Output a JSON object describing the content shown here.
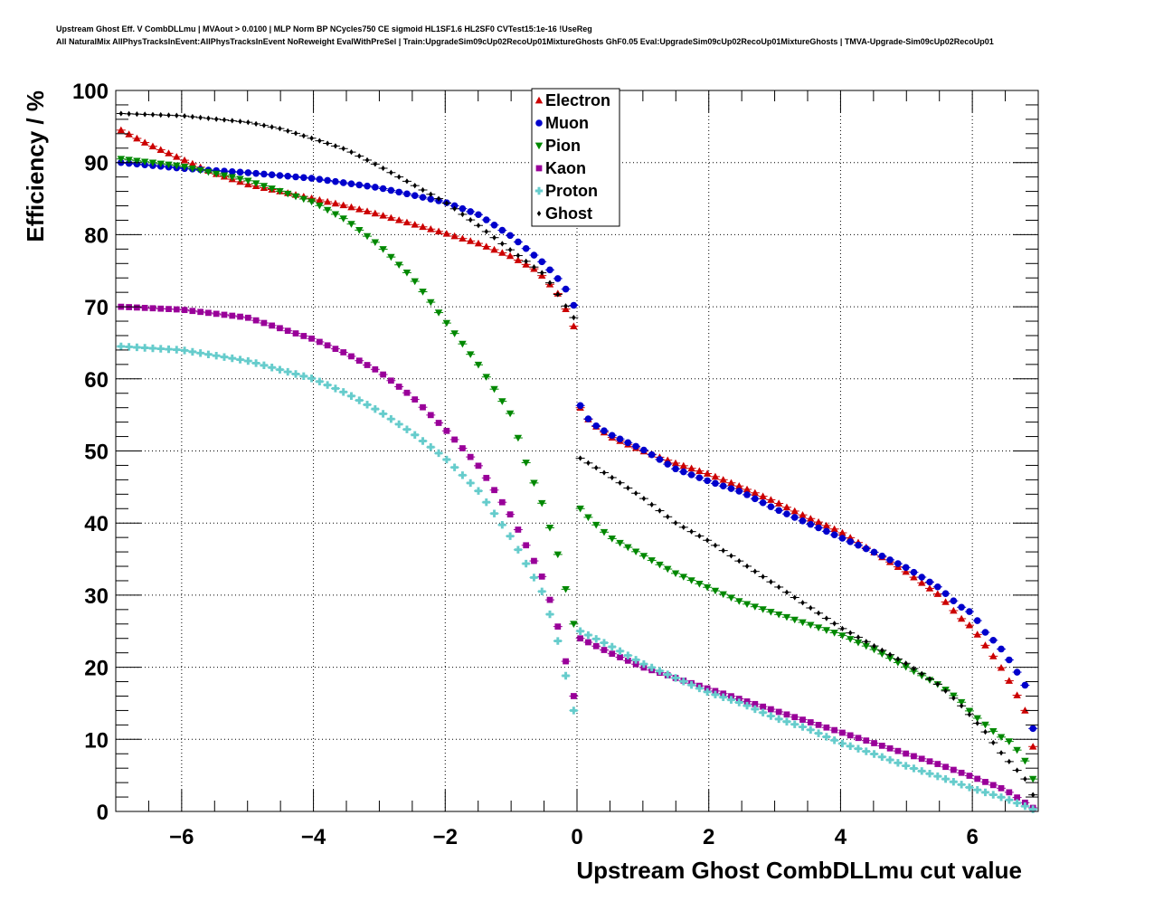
{
  "header": {
    "line1": "Upstream Ghost Eff. V CombDLLmu | MVAout > 0.0100 | MLP Norm BP NCycles750 CE sigmoid HL1SF1.6 HL2SF0 CVTest15:1e-16 !UseReg",
    "line2": "All NaturalMix AllPhysTracksInEvent:AllPhysTracksInEvent NoReweight EvalWithPreSel | Train:UpgradeSim09cUp02RecoUp01MixtureGhosts GhF0.05 Eval:UpgradeSim09cUp02RecoUp01MixtureGhosts | TMVA-Upgrade-Sim09cUp02RecoUp01"
  },
  "chart_data": {
    "type": "scatter",
    "xlabel": "Upstream Ghost CombDLLmu cut value",
    "ylabel": "Efficiency / %",
    "xlim": [
      -7,
      7
    ],
    "ylim": [
      0,
      100
    ],
    "x_ticks": [
      -6,
      -4,
      -2,
      0,
      2,
      4,
      6
    ],
    "x_tick_labels": [
      "−6",
      "−4",
      "−2",
      "0",
      "2",
      "4",
      "6"
    ],
    "y_ticks": [
      0,
      10,
      20,
      30,
      40,
      50,
      60,
      70,
      80,
      90,
      100
    ],
    "y_tick_labels": [
      "0",
      "10",
      "20",
      "30",
      "40",
      "50",
      "60",
      "70",
      "80",
      "90",
      "100"
    ],
    "grid": true,
    "legend_position": "top-center",
    "series": [
      {
        "name": "Electron",
        "color": "#cc0000",
        "marker": "triangle-up",
        "knots": [
          [
            -6.92,
            94.5
          ],
          [
            -6.5,
            92.5
          ],
          [
            -6.0,
            90.5
          ],
          [
            -5.5,
            88.5
          ],
          [
            -5.0,
            87.0
          ],
          [
            -4.5,
            86.0
          ],
          [
            -4.0,
            85.0
          ],
          [
            -3.5,
            84.0
          ],
          [
            -3.0,
            82.8
          ],
          [
            -2.5,
            81.5
          ],
          [
            -2.0,
            80.2
          ],
          [
            -1.5,
            78.8
          ],
          [
            -1.0,
            77.0
          ],
          [
            -0.6,
            75.0
          ],
          [
            -0.3,
            72.0
          ],
          [
            -0.16,
            69.5
          ],
          [
            -0.05,
            67.3
          ]
        ],
        "knots2": [
          [
            0.05,
            56.0
          ],
          [
            0.2,
            54.0
          ],
          [
            0.5,
            52.0
          ],
          [
            1.0,
            50.0
          ],
          [
            1.5,
            48.3
          ],
          [
            2.0,
            46.8
          ],
          [
            2.5,
            45.0
          ],
          [
            3.0,
            43.0
          ],
          [
            3.5,
            40.8
          ],
          [
            4.0,
            38.8
          ],
          [
            4.5,
            36.0
          ],
          [
            5.0,
            33.2
          ],
          [
            5.5,
            30.0
          ],
          [
            5.8,
            27.0
          ],
          [
            6.0,
            25.5
          ],
          [
            6.2,
            23.0
          ],
          [
            6.4,
            20.5
          ],
          [
            6.6,
            17.5
          ],
          [
            6.8,
            14.0
          ],
          [
            6.92,
            9.0
          ]
        ]
      },
      {
        "name": "Muon",
        "color": "#0000cc",
        "marker": "circle",
        "knots": [
          [
            -6.92,
            90.0
          ],
          [
            -6.0,
            89.2
          ],
          [
            -5.0,
            88.6
          ],
          [
            -4.0,
            87.8
          ],
          [
            -3.0,
            86.5
          ],
          [
            -2.0,
            84.5
          ],
          [
            -1.5,
            82.8
          ],
          [
            -1.0,
            79.8
          ],
          [
            -0.5,
            76.0
          ],
          [
            -0.2,
            73.0
          ],
          [
            -0.05,
            70.2
          ]
        ],
        "knots2": [
          [
            0.05,
            56.3
          ],
          [
            0.2,
            54.0
          ],
          [
            0.5,
            52.3
          ],
          [
            1.0,
            50.2
          ],
          [
            1.5,
            47.5
          ],
          [
            2.0,
            45.8
          ],
          [
            2.5,
            44.3
          ],
          [
            3.0,
            42.0
          ],
          [
            3.5,
            40.0
          ],
          [
            4.0,
            38.0
          ],
          [
            4.5,
            36.0
          ],
          [
            5.0,
            33.8
          ],
          [
            5.5,
            31.0
          ],
          [
            5.8,
            28.5
          ],
          [
            6.0,
            27.5
          ],
          [
            6.2,
            24.8
          ],
          [
            6.4,
            23.0
          ],
          [
            6.6,
            20.5
          ],
          [
            6.8,
            17.5
          ],
          [
            6.92,
            11.5
          ]
        ]
      },
      {
        "name": "Pion",
        "color": "#008800",
        "marker": "triangle-down",
        "knots": [
          [
            -6.92,
            90.5
          ],
          [
            -6.0,
            89.5
          ],
          [
            -5.0,
            87.5
          ],
          [
            -4.0,
            84.5
          ],
          [
            -3.5,
            82.0
          ],
          [
            -3.0,
            78.5
          ],
          [
            -2.5,
            74.0
          ],
          [
            -2.0,
            68.0
          ],
          [
            -1.5,
            62.0
          ],
          [
            -1.0,
            55.0
          ],
          [
            -0.8,
            49.0
          ],
          [
            -0.5,
            42.0
          ],
          [
            -0.3,
            36.0
          ],
          [
            -0.15,
            30.0
          ],
          [
            -0.05,
            26.0
          ]
        ],
        "knots2": [
          [
            0.05,
            42.0
          ],
          [
            0.2,
            40.5
          ],
          [
            0.5,
            38.0
          ],
          [
            1.0,
            35.5
          ],
          [
            1.5,
            33.0
          ],
          [
            2.0,
            31.0
          ],
          [
            2.5,
            29.0
          ],
          [
            3.0,
            27.5
          ],
          [
            3.5,
            26.0
          ],
          [
            4.0,
            24.5
          ],
          [
            4.5,
            22.5
          ],
          [
            5.0,
            20.0
          ],
          [
            5.5,
            17.5
          ],
          [
            5.8,
            15.5
          ],
          [
            6.0,
            13.5
          ],
          [
            6.2,
            12.0
          ],
          [
            6.4,
            10.5
          ],
          [
            6.6,
            9.5
          ],
          [
            6.8,
            7.0
          ],
          [
            6.92,
            4.5
          ]
        ]
      },
      {
        "name": "Kaon",
        "color": "#990099",
        "marker": "square",
        "knots": [
          [
            -6.92,
            70.0
          ],
          [
            -6.0,
            69.6
          ],
          [
            -5.0,
            68.5
          ],
          [
            -4.5,
            67.0
          ],
          [
            -4.0,
            65.5
          ],
          [
            -3.5,
            63.5
          ],
          [
            -3.0,
            61.0
          ],
          [
            -2.5,
            57.5
          ],
          [
            -2.0,
            53.0
          ],
          [
            -1.5,
            48.0
          ],
          [
            -1.0,
            41.0
          ],
          [
            -0.5,
            32.0
          ],
          [
            -0.3,
            26.0
          ],
          [
            -0.15,
            20.0
          ],
          [
            -0.05,
            16.0
          ]
        ],
        "knots2": [
          [
            0.05,
            24.0
          ],
          [
            0.5,
            22.0
          ],
          [
            1.0,
            20.0
          ],
          [
            1.5,
            18.5
          ],
          [
            2.0,
            17.0
          ],
          [
            2.5,
            15.5
          ],
          [
            3.0,
            14.0
          ],
          [
            3.5,
            12.5
          ],
          [
            4.0,
            11.0
          ],
          [
            4.5,
            9.5
          ],
          [
            5.0,
            8.0
          ],
          [
            5.5,
            6.5
          ],
          [
            6.0,
            4.8
          ],
          [
            6.5,
            3.0
          ],
          [
            6.92,
            0.5
          ]
        ]
      },
      {
        "name": "Proton",
        "color": "#66cccc",
        "marker": "cross",
        "knots": [
          [
            -6.92,
            64.5
          ],
          [
            -6.0,
            64.0
          ],
          [
            -5.0,
            62.5
          ],
          [
            -4.0,
            60.0
          ],
          [
            -3.5,
            58.0
          ],
          [
            -3.0,
            55.5
          ],
          [
            -2.5,
            52.5
          ],
          [
            -2.0,
            49.0
          ],
          [
            -1.5,
            44.5
          ],
          [
            -1.0,
            38.0
          ],
          [
            -0.5,
            30.0
          ],
          [
            -0.3,
            24.0
          ],
          [
            -0.15,
            18.0
          ],
          [
            -0.05,
            14.0
          ]
        ],
        "knots2": [
          [
            0.05,
            25.0
          ],
          [
            0.5,
            23.0
          ],
          [
            1.0,
            20.5
          ],
          [
            1.5,
            18.5
          ],
          [
            2.0,
            16.5
          ],
          [
            2.5,
            15.0
          ],
          [
            3.0,
            13.0
          ],
          [
            3.5,
            11.5
          ],
          [
            4.0,
            9.5
          ],
          [
            4.5,
            8.0
          ],
          [
            5.0,
            6.3
          ],
          [
            5.5,
            4.8
          ],
          [
            6.0,
            3.2
          ],
          [
            6.5,
            1.8
          ],
          [
            6.92,
            0.3
          ]
        ]
      },
      {
        "name": "Ghost",
        "color": "#000000",
        "marker": "diamond",
        "knots": [
          [
            -6.92,
            96.8
          ],
          [
            -6.0,
            96.5
          ],
          [
            -5.0,
            95.6
          ],
          [
            -4.5,
            94.7
          ],
          [
            -4.0,
            93.3
          ],
          [
            -3.5,
            91.8
          ],
          [
            -3.0,
            89.5
          ],
          [
            -2.5,
            87.0
          ],
          [
            -2.0,
            84.5
          ],
          [
            -1.5,
            81.3
          ],
          [
            -1.0,
            77.8
          ],
          [
            -0.5,
            74.5
          ],
          [
            -0.2,
            70.5
          ],
          [
            -0.05,
            68.5
          ]
        ],
        "knots2": [
          [
            0.05,
            49.0
          ],
          [
            0.5,
            46.5
          ],
          [
            1.0,
            43.5
          ],
          [
            1.5,
            40.0
          ],
          [
            2.0,
            37.5
          ],
          [
            2.5,
            34.5
          ],
          [
            3.0,
            31.5
          ],
          [
            3.5,
            28.5
          ],
          [
            4.0,
            25.5
          ],
          [
            4.5,
            23.0
          ],
          [
            5.0,
            20.5
          ],
          [
            5.5,
            17.5
          ],
          [
            5.8,
            15.0
          ],
          [
            6.0,
            13.0
          ],
          [
            6.2,
            11.0
          ],
          [
            6.4,
            8.5
          ],
          [
            6.6,
            6.5
          ],
          [
            6.8,
            4.5
          ],
          [
            6.92,
            2.3
          ]
        ]
      }
    ]
  }
}
